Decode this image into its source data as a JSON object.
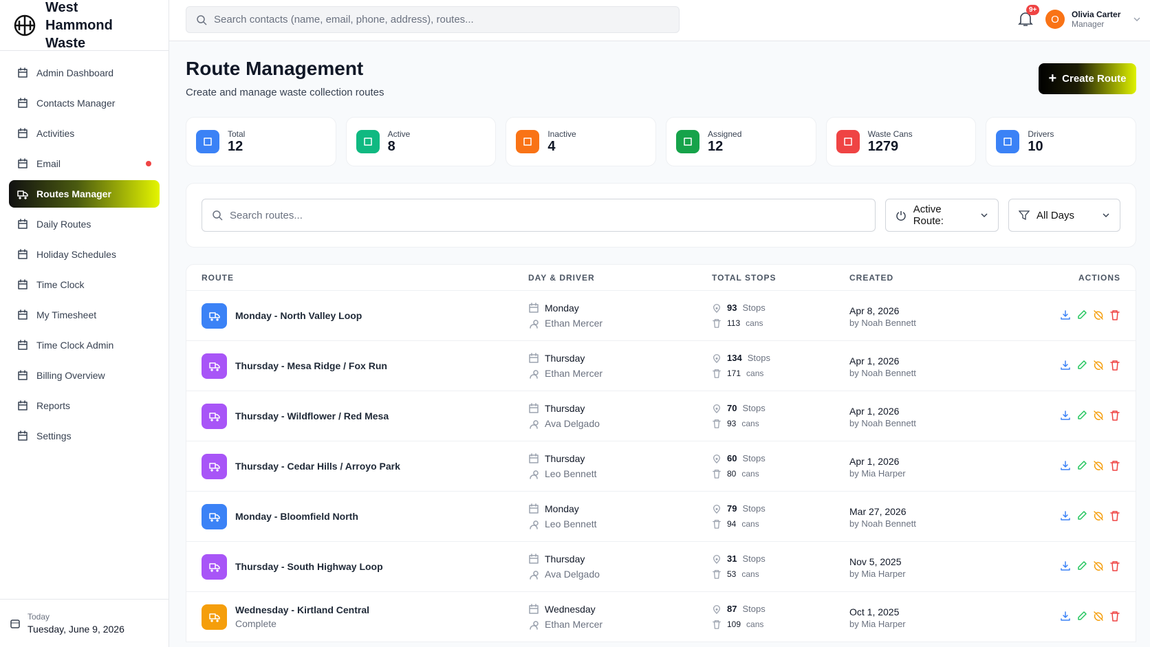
{
  "brand": {
    "name": "West Hammond Waste"
  },
  "top": {
    "search_placeholder": "Search contacts (name, email, phone, address), routes...",
    "notifications": "9+",
    "user": {
      "initial": "O",
      "name": "Olivia Carter",
      "role": "Manager"
    }
  },
  "nav": [
    {
      "label": "Admin Dashboard"
    },
    {
      "label": "Contacts Manager"
    },
    {
      "label": "Activities"
    },
    {
      "label": "Email",
      "alert": true
    },
    {
      "label": "Routes Manager",
      "active": true
    },
    {
      "label": "Daily Routes"
    },
    {
      "label": "Holiday Schedules"
    },
    {
      "label": "Time Clock"
    },
    {
      "label": "My Timesheet"
    },
    {
      "label": "Time Clock Admin"
    },
    {
      "label": "Billing Overview"
    },
    {
      "label": "Reports"
    },
    {
      "label": "Settings"
    }
  ],
  "today": {
    "label": "Today",
    "date": "Tuesday, June 9, 2026"
  },
  "page": {
    "title": "Route Management",
    "subtitle": "Create and manage waste collection routes",
    "create_button": "Create Route"
  },
  "stats": [
    {
      "label": "Total",
      "value": 12,
      "color": "#3b82f6"
    },
    {
      "label": "Active",
      "value": 8,
      "color": "#10b981"
    },
    {
      "label": "Inactive",
      "value": 4,
      "color": "#f97316"
    },
    {
      "label": "Assigned",
      "value": 12,
      "color": "#16a34a"
    },
    {
      "label": "Waste Cans",
      "value": 1279,
      "color": "#ef4444"
    },
    {
      "label": "Drivers",
      "value": 10,
      "color": "#3b82f6"
    }
  ],
  "filters": {
    "search_placeholder": "Search routes...",
    "active": "Active Route:",
    "days": "All Days"
  },
  "table": {
    "columns": [
      "ROUTE",
      "DAY & DRIVER",
      "TOTAL STOPS",
      "CREATED",
      "ACTIONS"
    ],
    "units": {
      "stops": "Stops",
      "cans": "cans"
    },
    "rows": [
      {
        "name": "Monday - North Valley Loop",
        "day": "Monday",
        "driver": "Ethan Mercer",
        "stops": 93,
        "cans": 113,
        "created": "Apr 8, 2026",
        "by": "by Noah Bennett",
        "color": "#3b82f6"
      },
      {
        "name": "Thursday - Mesa Ridge / Fox Run",
        "day": "Thursday",
        "driver": "Ethan Mercer",
        "stops": 134,
        "cans": 171,
        "created": "Apr 1, 2026",
        "by": "by Noah Bennett",
        "color": "#a855f7"
      },
      {
        "name": "Thursday - Wildflower / Red Mesa",
        "day": "Thursday",
        "driver": "Ava Delgado",
        "stops": 70,
        "cans": 93,
        "created": "Apr 1, 2026",
        "by": "by Noah Bennett",
        "color": "#a855f7"
      },
      {
        "name": "Thursday - Cedar Hills / Arroyo Park",
        "day": "Thursday",
        "driver": "Leo Bennett",
        "stops": 60,
        "cans": 80,
        "created": "Apr 1, 2026",
        "by": "by Mia Harper",
        "color": "#a855f7"
      },
      {
        "name": "Monday - Bloomfield North",
        "day": "Monday",
        "driver": "Leo Bennett",
        "stops": 79,
        "cans": 94,
        "created": "Mar 27, 2026",
        "by": "by Noah Bennett",
        "color": "#3b82f6"
      },
      {
        "name": "Thursday - South Highway Loop",
        "day": "Thursday",
        "driver": "Ava Delgado",
        "stops": 31,
        "cans": 53,
        "created": "Nov 5, 2025",
        "by": "by Mia Harper",
        "color": "#a855f7"
      },
      {
        "name": "Wednesday - Kirtland Central",
        "status": "Complete",
        "day": "Wednesday",
        "driver": "Ethan Mercer",
        "stops": 87,
        "cans": 109,
        "created": "Oct 1, 2025",
        "by": "by Mia Harper",
        "color": "#f59e0b"
      }
    ]
  }
}
